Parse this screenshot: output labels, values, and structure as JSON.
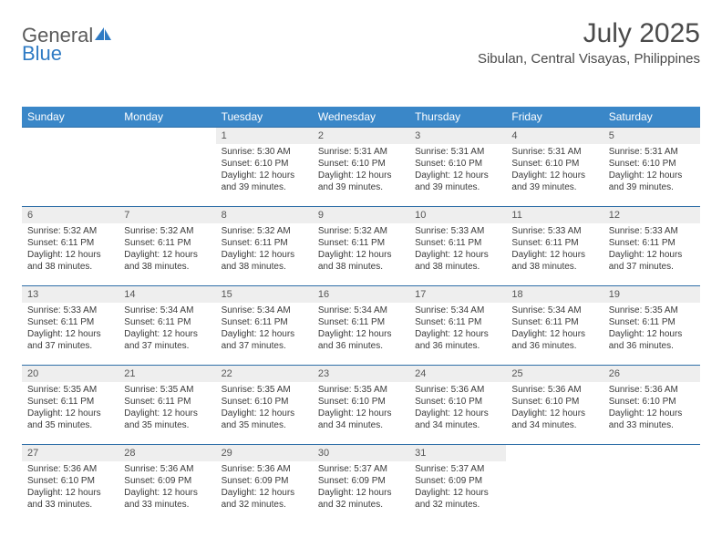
{
  "logo": {
    "text1": "General",
    "text2": "Blue"
  },
  "title": "July 2025",
  "location": "Sibulan, Central Visayas, Philippines",
  "colors": {
    "header_bg": "#3a87c8",
    "header_text": "#ffffff",
    "daynum_bg": "#eeeeee",
    "border": "#2f6fa8",
    "text": "#3a3a3a",
    "logo_blue": "#2f7bc4"
  },
  "weekdays": [
    "Sunday",
    "Monday",
    "Tuesday",
    "Wednesday",
    "Thursday",
    "Friday",
    "Saturday"
  ],
  "weeks": [
    [
      null,
      null,
      {
        "n": "1",
        "sr": "Sunrise: 5:30 AM",
        "ss": "Sunset: 6:10 PM",
        "dl1": "Daylight: 12 hours",
        "dl2": "and 39 minutes."
      },
      {
        "n": "2",
        "sr": "Sunrise: 5:31 AM",
        "ss": "Sunset: 6:10 PM",
        "dl1": "Daylight: 12 hours",
        "dl2": "and 39 minutes."
      },
      {
        "n": "3",
        "sr": "Sunrise: 5:31 AM",
        "ss": "Sunset: 6:10 PM",
        "dl1": "Daylight: 12 hours",
        "dl2": "and 39 minutes."
      },
      {
        "n": "4",
        "sr": "Sunrise: 5:31 AM",
        "ss": "Sunset: 6:10 PM",
        "dl1": "Daylight: 12 hours",
        "dl2": "and 39 minutes."
      },
      {
        "n": "5",
        "sr": "Sunrise: 5:31 AM",
        "ss": "Sunset: 6:10 PM",
        "dl1": "Daylight: 12 hours",
        "dl2": "and 39 minutes."
      }
    ],
    [
      {
        "n": "6",
        "sr": "Sunrise: 5:32 AM",
        "ss": "Sunset: 6:11 PM",
        "dl1": "Daylight: 12 hours",
        "dl2": "and 38 minutes."
      },
      {
        "n": "7",
        "sr": "Sunrise: 5:32 AM",
        "ss": "Sunset: 6:11 PM",
        "dl1": "Daylight: 12 hours",
        "dl2": "and 38 minutes."
      },
      {
        "n": "8",
        "sr": "Sunrise: 5:32 AM",
        "ss": "Sunset: 6:11 PM",
        "dl1": "Daylight: 12 hours",
        "dl2": "and 38 minutes."
      },
      {
        "n": "9",
        "sr": "Sunrise: 5:32 AM",
        "ss": "Sunset: 6:11 PM",
        "dl1": "Daylight: 12 hours",
        "dl2": "and 38 minutes."
      },
      {
        "n": "10",
        "sr": "Sunrise: 5:33 AM",
        "ss": "Sunset: 6:11 PM",
        "dl1": "Daylight: 12 hours",
        "dl2": "and 38 minutes."
      },
      {
        "n": "11",
        "sr": "Sunrise: 5:33 AM",
        "ss": "Sunset: 6:11 PM",
        "dl1": "Daylight: 12 hours",
        "dl2": "and 38 minutes."
      },
      {
        "n": "12",
        "sr": "Sunrise: 5:33 AM",
        "ss": "Sunset: 6:11 PM",
        "dl1": "Daylight: 12 hours",
        "dl2": "and 37 minutes."
      }
    ],
    [
      {
        "n": "13",
        "sr": "Sunrise: 5:33 AM",
        "ss": "Sunset: 6:11 PM",
        "dl1": "Daylight: 12 hours",
        "dl2": "and 37 minutes."
      },
      {
        "n": "14",
        "sr": "Sunrise: 5:34 AM",
        "ss": "Sunset: 6:11 PM",
        "dl1": "Daylight: 12 hours",
        "dl2": "and 37 minutes."
      },
      {
        "n": "15",
        "sr": "Sunrise: 5:34 AM",
        "ss": "Sunset: 6:11 PM",
        "dl1": "Daylight: 12 hours",
        "dl2": "and 37 minutes."
      },
      {
        "n": "16",
        "sr": "Sunrise: 5:34 AM",
        "ss": "Sunset: 6:11 PM",
        "dl1": "Daylight: 12 hours",
        "dl2": "and 36 minutes."
      },
      {
        "n": "17",
        "sr": "Sunrise: 5:34 AM",
        "ss": "Sunset: 6:11 PM",
        "dl1": "Daylight: 12 hours",
        "dl2": "and 36 minutes."
      },
      {
        "n": "18",
        "sr": "Sunrise: 5:34 AM",
        "ss": "Sunset: 6:11 PM",
        "dl1": "Daylight: 12 hours",
        "dl2": "and 36 minutes."
      },
      {
        "n": "19",
        "sr": "Sunrise: 5:35 AM",
        "ss": "Sunset: 6:11 PM",
        "dl1": "Daylight: 12 hours",
        "dl2": "and 36 minutes."
      }
    ],
    [
      {
        "n": "20",
        "sr": "Sunrise: 5:35 AM",
        "ss": "Sunset: 6:11 PM",
        "dl1": "Daylight: 12 hours",
        "dl2": "and 35 minutes."
      },
      {
        "n": "21",
        "sr": "Sunrise: 5:35 AM",
        "ss": "Sunset: 6:11 PM",
        "dl1": "Daylight: 12 hours",
        "dl2": "and 35 minutes."
      },
      {
        "n": "22",
        "sr": "Sunrise: 5:35 AM",
        "ss": "Sunset: 6:10 PM",
        "dl1": "Daylight: 12 hours",
        "dl2": "and 35 minutes."
      },
      {
        "n": "23",
        "sr": "Sunrise: 5:35 AM",
        "ss": "Sunset: 6:10 PM",
        "dl1": "Daylight: 12 hours",
        "dl2": "and 34 minutes."
      },
      {
        "n": "24",
        "sr": "Sunrise: 5:36 AM",
        "ss": "Sunset: 6:10 PM",
        "dl1": "Daylight: 12 hours",
        "dl2": "and 34 minutes."
      },
      {
        "n": "25",
        "sr": "Sunrise: 5:36 AM",
        "ss": "Sunset: 6:10 PM",
        "dl1": "Daylight: 12 hours",
        "dl2": "and 34 minutes."
      },
      {
        "n": "26",
        "sr": "Sunrise: 5:36 AM",
        "ss": "Sunset: 6:10 PM",
        "dl1": "Daylight: 12 hours",
        "dl2": "and 33 minutes."
      }
    ],
    [
      {
        "n": "27",
        "sr": "Sunrise: 5:36 AM",
        "ss": "Sunset: 6:10 PM",
        "dl1": "Daylight: 12 hours",
        "dl2": "and 33 minutes."
      },
      {
        "n": "28",
        "sr": "Sunrise: 5:36 AM",
        "ss": "Sunset: 6:09 PM",
        "dl1": "Daylight: 12 hours",
        "dl2": "and 33 minutes."
      },
      {
        "n": "29",
        "sr": "Sunrise: 5:36 AM",
        "ss": "Sunset: 6:09 PM",
        "dl1": "Daylight: 12 hours",
        "dl2": "and 32 minutes."
      },
      {
        "n": "30",
        "sr": "Sunrise: 5:37 AM",
        "ss": "Sunset: 6:09 PM",
        "dl1": "Daylight: 12 hours",
        "dl2": "and 32 minutes."
      },
      {
        "n": "31",
        "sr": "Sunrise: 5:37 AM",
        "ss": "Sunset: 6:09 PM",
        "dl1": "Daylight: 12 hours",
        "dl2": "and 32 minutes."
      },
      null,
      null
    ]
  ]
}
